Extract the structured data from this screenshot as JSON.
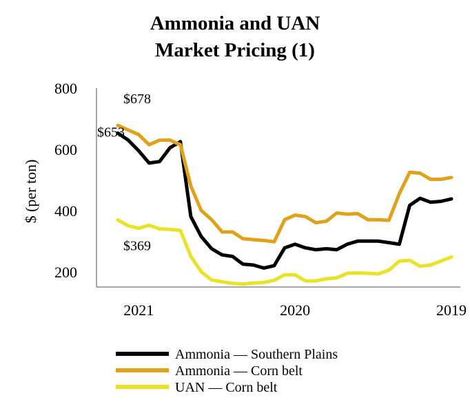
{
  "chart_data": {
    "type": "line",
    "title": [
      "Ammonia and UAN",
      "Market Pricing (1)"
    ],
    "xlabel": "",
    "ylabel": "$ (per ton)",
    "ylim": [
      150,
      800
    ],
    "yticks": [
      200,
      400,
      600,
      800
    ],
    "x_tick_labels": [
      "2021",
      "2020",
      "2019"
    ],
    "x_tick_index": [
      2,
      17,
      32
    ],
    "legend_position": "bottom",
    "series": [
      {
        "name": "Ammonia — Southern Plains",
        "color": "#000000",
        "values": [
          653,
          630,
          595,
          555,
          560,
          605,
          625,
          380,
          315,
          275,
          255,
          250,
          225,
          222,
          212,
          220,
          278,
          290,
          278,
          272,
          275,
          272,
          290,
          300,
          300,
          300,
          295,
          290,
          417,
          440,
          427,
          430,
          438
        ]
      },
      {
        "name": "Ammonia — Corn belt",
        "color": "#E0A21A",
        "values": [
          678,
          663,
          648,
          615,
          630,
          630,
          615,
          480,
          400,
          370,
          330,
          330,
          308,
          305,
          302,
          298,
          370,
          385,
          380,
          360,
          365,
          392,
          388,
          390,
          370,
          370,
          368,
          455,
          525,
          522,
          502,
          502,
          508
        ]
      },
      {
        "name": "UAN — Corn belt",
        "color": "#E9E227",
        "values": [
          369,
          350,
          342,
          352,
          340,
          338,
          335,
          250,
          200,
          173,
          167,
          162,
          160,
          163,
          165,
          172,
          190,
          190,
          170,
          170,
          177,
          180,
          195,
          196,
          195,
          193,
          205,
          235,
          237,
          218,
          222,
          235,
          248
        ]
      }
    ],
    "annotations": [
      {
        "text": "$678",
        "series": 1,
        "index": 0
      },
      {
        "text": "$653",
        "series": 0,
        "index": 0
      },
      {
        "text": "$369",
        "series": 2,
        "index": 0
      }
    ]
  }
}
